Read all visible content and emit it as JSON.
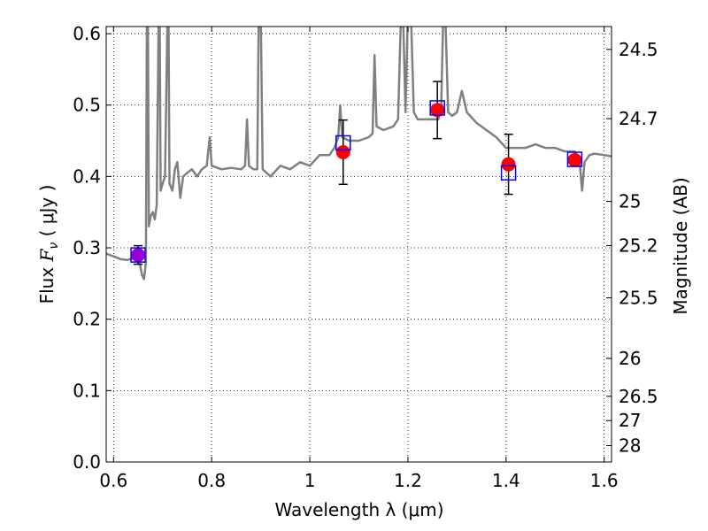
{
  "chart_data": {
    "type": "line",
    "xlabel": "Wavelength  λ (μm)",
    "ylabel_prefix": "Flux ",
    "ylabel_math": "F",
    "ylabel_sub": "ν",
    "ylabel_suffix": "  ( μJy )",
    "y2label": "Magnitude (AB)",
    "xlim": [
      0.585,
      1.615
    ],
    "ylim": [
      0.0,
      0.61
    ],
    "grid": true,
    "x_ticks": [
      {
        "value": 0.6,
        "label": "0.6"
      },
      {
        "value": 0.8,
        "label": "0.8"
      },
      {
        "value": 1.0,
        "label": "1"
      },
      {
        "value": 1.2,
        "label": "1.2"
      },
      {
        "value": 1.4,
        "label": "1.4"
      },
      {
        "value": 1.6,
        "label": "1.6"
      }
    ],
    "y_ticks": [
      {
        "value": 0.0,
        "label": "0.0"
      },
      {
        "value": 0.1,
        "label": "0.1"
      },
      {
        "value": 0.2,
        "label": "0.2"
      },
      {
        "value": 0.3,
        "label": "0.3"
      },
      {
        "value": 0.4,
        "label": "0.4"
      },
      {
        "value": 0.5,
        "label": "0.5"
      },
      {
        "value": 0.6,
        "label": "0.6"
      }
    ],
    "y2_ticks": [
      {
        "label": "24.5",
        "flux": 0.578
      },
      {
        "label": "24.7",
        "flux": 0.481
      },
      {
        "label": "25",
        "flux": 0.365
      },
      {
        "label": "25.2",
        "flux": 0.303
      },
      {
        "label": "25.5",
        "flux": 0.23
      },
      {
        "label": "26",
        "flux": 0.145
      },
      {
        "label": "26.5",
        "flux": 0.092
      },
      {
        "label": "27",
        "flux": 0.058
      },
      {
        "label": "28",
        "flux": 0.023
      }
    ],
    "series": [
      {
        "kind": "model-spectrum",
        "color": "#808080",
        "points": [
          [
            0.585,
            0.292
          ],
          [
            0.6,
            0.288
          ],
          [
            0.615,
            0.284
          ],
          [
            0.628,
            0.283
          ],
          [
            0.64,
            0.285
          ],
          [
            0.65,
            0.29
          ],
          [
            0.658,
            0.262
          ],
          [
            0.662,
            0.256
          ],
          [
            0.666,
            0.28
          ],
          [
            0.668,
            0.63
          ],
          [
            0.67,
            0.63
          ],
          [
            0.672,
            0.33
          ],
          [
            0.676,
            0.345
          ],
          [
            0.68,
            0.35
          ],
          [
            0.684,
            0.34
          ],
          [
            0.688,
            0.36
          ],
          [
            0.692,
            0.63
          ],
          [
            0.694,
            0.63
          ],
          [
            0.696,
            0.38
          ],
          [
            0.7,
            0.39
          ],
          [
            0.705,
            0.4
          ],
          [
            0.71,
            0.63
          ],
          [
            0.712,
            0.63
          ],
          [
            0.714,
            0.39
          ],
          [
            0.72,
            0.38
          ],
          [
            0.725,
            0.41
          ],
          [
            0.73,
            0.42
          ],
          [
            0.736,
            0.37
          ],
          [
            0.742,
            0.4
          ],
          [
            0.75,
            0.405
          ],
          [
            0.76,
            0.41
          ],
          [
            0.77,
            0.4
          ],
          [
            0.78,
            0.41
          ],
          [
            0.79,
            0.415
          ],
          [
            0.796,
            0.455
          ],
          [
            0.8,
            0.415
          ],
          [
            0.82,
            0.41
          ],
          [
            0.84,
            0.412
          ],
          [
            0.86,
            0.41
          ],
          [
            0.868,
            0.415
          ],
          [
            0.872,
            0.48
          ],
          [
            0.876,
            0.415
          ],
          [
            0.885,
            0.41
          ],
          [
            0.893,
            0.41
          ],
          [
            0.896,
            0.63
          ],
          [
            0.9,
            0.63
          ],
          [
            0.904,
            0.41
          ],
          [
            0.92,
            0.4
          ],
          [
            0.94,
            0.415
          ],
          [
            0.96,
            0.41
          ],
          [
            0.98,
            0.42
          ],
          [
            1.0,
            0.415
          ],
          [
            1.02,
            0.43
          ],
          [
            1.03,
            0.43
          ],
          [
            1.04,
            0.43
          ],
          [
            1.05,
            0.44
          ],
          [
            1.058,
            0.455
          ],
          [
            1.062,
            0.5
          ],
          [
            1.066,
            0.455
          ],
          [
            1.08,
            0.45
          ],
          [
            1.1,
            0.45
          ],
          [
            1.12,
            0.455
          ],
          [
            1.128,
            0.46
          ],
          [
            1.132,
            0.57
          ],
          [
            1.136,
            0.47
          ],
          [
            1.15,
            0.465
          ],
          [
            1.17,
            0.47
          ],
          [
            1.18,
            0.48
          ],
          [
            1.186,
            0.63
          ],
          [
            1.19,
            0.63
          ],
          [
            1.195,
            0.49
          ],
          [
            1.2,
            0.63
          ],
          [
            1.206,
            0.63
          ],
          [
            1.212,
            0.49
          ],
          [
            1.22,
            0.48
          ],
          [
            1.24,
            0.48
          ],
          [
            1.255,
            0.48
          ],
          [
            1.262,
            0.48
          ],
          [
            1.268,
            0.5
          ],
          [
            1.272,
            0.63
          ],
          [
            1.276,
            0.63
          ],
          [
            1.282,
            0.49
          ],
          [
            1.29,
            0.485
          ],
          [
            1.3,
            0.49
          ],
          [
            1.31,
            0.52
          ],
          [
            1.32,
            0.49
          ],
          [
            1.34,
            0.475
          ],
          [
            1.36,
            0.465
          ],
          [
            1.38,
            0.455
          ],
          [
            1.4,
            0.44
          ],
          [
            1.42,
            0.44
          ],
          [
            1.44,
            0.44
          ],
          [
            1.46,
            0.445
          ],
          [
            1.48,
            0.44
          ],
          [
            1.5,
            0.44
          ],
          [
            1.52,
            0.435
          ],
          [
            1.54,
            0.435
          ],
          [
            1.55,
            0.42
          ],
          [
            1.555,
            0.38
          ],
          [
            1.56,
            0.42
          ],
          [
            1.57,
            0.43
          ],
          [
            1.58,
            0.432
          ],
          [
            1.6,
            0.43
          ],
          [
            1.615,
            0.428
          ]
        ]
      },
      {
        "kind": "observed",
        "color": "#ff0000",
        "points": [
          {
            "x": 1.068,
            "y": 0.434,
            "err": 0.045
          },
          {
            "x": 1.26,
            "y": 0.493,
            "err": 0.04
          },
          {
            "x": 1.405,
            "y": 0.417,
            "err": 0.042
          },
          {
            "x": 1.54,
            "y": 0.423,
            "err": 0.0
          }
        ]
      },
      {
        "kind": "observed-purple",
        "color": "#9900cc",
        "points": [
          {
            "x": 0.65,
            "y": 0.29,
            "err": 0.013
          }
        ]
      },
      {
        "kind": "model-photometry",
        "color": "#0000ff",
        "points": [
          {
            "x": 0.65,
            "y": 0.29
          },
          {
            "x": 1.068,
            "y": 0.447
          },
          {
            "x": 1.26,
            "y": 0.496
          },
          {
            "x": 1.405,
            "y": 0.405
          },
          {
            "x": 1.54,
            "y": 0.424
          }
        ]
      }
    ]
  }
}
